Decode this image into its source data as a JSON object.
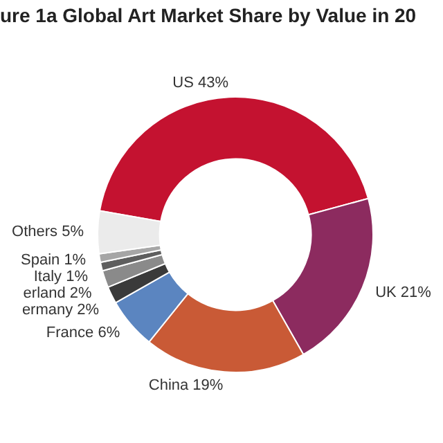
{
  "chart_data": {
    "type": "donut",
    "title": "ure 1a  Global Art Market Share by Value in 20",
    "categories": [
      "US",
      "UK",
      "China",
      "France",
      "ermany",
      "erland",
      "Italy",
      "Spain",
      "Others"
    ],
    "values": [
      43,
      21,
      19,
      6,
      2,
      2,
      1,
      1,
      5
    ],
    "value_labels": [
      "43%",
      "21%",
      "19%",
      "6%",
      "2%",
      "2%",
      "1%",
      "1%",
      "5%"
    ],
    "colors": [
      "#c41230",
      "#8c2b5f",
      "#c95a36",
      "#5b85c0",
      "#3a3a3a",
      "#8a8a8a",
      "#5e5e5e",
      "#a6a6a6",
      "#ebebeb"
    ],
    "legend": false
  }
}
